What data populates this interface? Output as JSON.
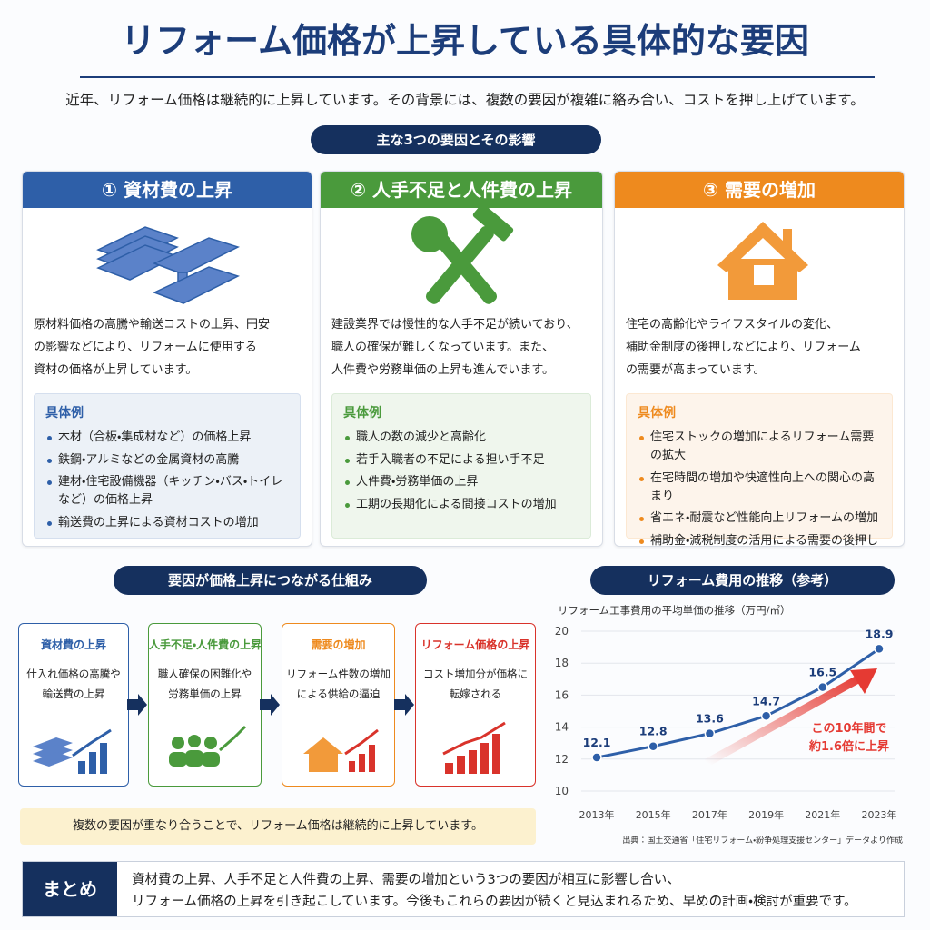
{
  "header": {
    "title": "リフォーム価格が上昇している具体的な要因",
    "lead": "近年、リフォーム価格は継続的に上昇しています。その背景には、複数の要因が複雑に絡み合い、コストを押し上げています。"
  },
  "factors_heading": "主な3つの要因とその影響",
  "factors": [
    {
      "title": "① 資材費の上昇",
      "color": "#2e5fa8",
      "description": [
        "原材料価格の高騰や輸送コストの上昇、円安",
        "の影響などにより、リフォームに使用する",
        "資材の価格が上昇しています。"
      ],
      "examples_label": "具体例",
      "examples": [
        "木材（合板・集成材など）の価格上昇",
        "鉄鋼・アルミなどの金属資材の高騰",
        "建材・住宅設備機器（キッチン・バス・トイレなど）の価格上昇",
        "輸送費の上昇による資材コストの増加"
      ]
    },
    {
      "title": "② 人手不足と人件費の上昇",
      "color": "#4a9a3c",
      "description": [
        "建設業界では慢性的な人手不足が続いており、",
        "職人の確保が難しくなっています。また、",
        "人件費や労務単価の上昇も進んでいます。"
      ],
      "examples_label": "具体例",
      "examples": [
        "職人の数の減少と高齢化",
        "若手入職者の不足による担い手不足",
        "人件費・労務単価の上昇",
        "工期の長期化による間接コストの増加"
      ]
    },
    {
      "title": "③ 需要の増加",
      "color": "#ee8a1e",
      "description": [
        "住宅の高齢化やライフスタイルの変化、",
        "補助金制度の後押しなどにより、リフォーム",
        "の需要が高まっています。"
      ],
      "examples_label": "具体例",
      "examples": [
        "住宅ストックの増加によるリフォーム需要の拡大",
        "在宅時間の増加や快適性向上への関心の高まり",
        "省エネ・耐震など性能向上リフォームの増加",
        "補助金・減税制度の活用による需要の後押し"
      ]
    }
  ],
  "mechanism": {
    "heading": "要因が価格上昇につながる仕組み",
    "steps": [
      {
        "title": "資材費の上昇",
        "color": "#2e5fa8",
        "text": [
          "仕入れ価格の高騰や",
          "輸送費の上昇"
        ]
      },
      {
        "title": "人手不足・人件費の上昇",
        "color": "#4a9a3c",
        "text": [
          "職人確保の困難化や",
          "労務単価の上昇"
        ]
      },
      {
        "title": "需要の増加",
        "color": "#ee8a1e",
        "text": [
          "リフォーム件数の増加",
          "による供給の逼迫"
        ]
      },
      {
        "title": "リフォーム価格の上昇",
        "color": "#d9332b",
        "text": [
          "コスト増加分が価格に",
          "転嫁される"
        ]
      }
    ],
    "note": "複数の要因が重なり合うことで、リフォーム価格は継続的に上昇しています。"
  },
  "chart_data": {
    "type": "line",
    "heading": "リフォーム費用の推移（参考）",
    "title": "リフォーム工事費用の平均単価の推移（万円/㎡）",
    "categories": [
      "2013年",
      "2015年",
      "2017年",
      "2019年",
      "2021年",
      "2023年"
    ],
    "values": [
      12.1,
      12.8,
      13.6,
      14.7,
      16.5,
      18.9
    ],
    "color": "#2e5fa8",
    "ylim": [
      10,
      20
    ],
    "yticks": [
      10,
      12,
      14,
      16,
      18,
      20
    ],
    "grid": true,
    "annotation": [
      "この10年間で",
      "約1.6倍に上昇"
    ],
    "source": "出典：国土交通省「住宅リフォーム・紛争処理支援センター」データより作成"
  },
  "summary": {
    "label": "まとめ",
    "text": [
      "資材費の上昇、人手不足と人件費の上昇、需要の増加という3つの要因が相互に影響し合い、",
      "リフォーム価格の上昇を引き起こしています。今後もこれらの要因が続くと見込まれるため、早めの計画・検討が重要です。"
    ]
  }
}
